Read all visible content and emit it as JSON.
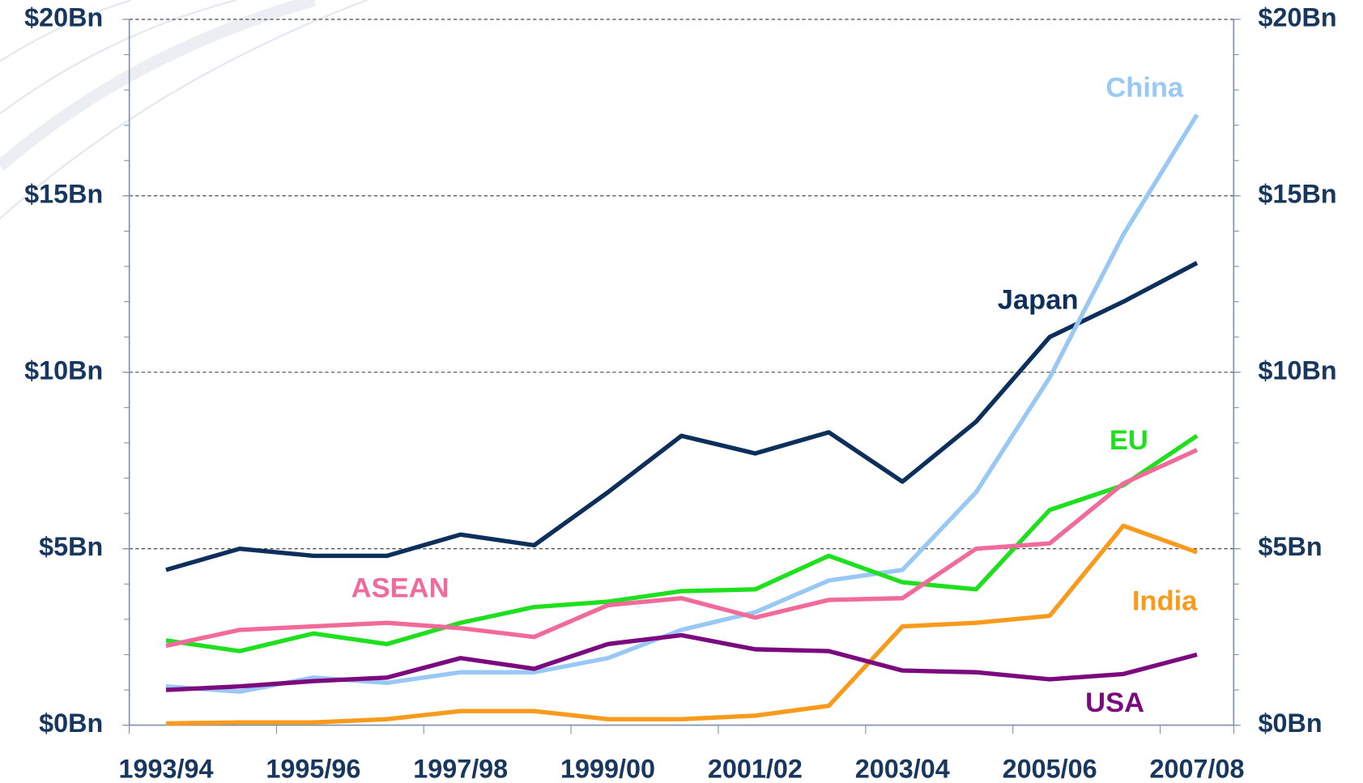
{
  "chart_data": {
    "type": "line",
    "categories": [
      "1993/94",
      null,
      "1995/96",
      null,
      "1997/98",
      null,
      "1999/00",
      null,
      "2001/02",
      null,
      "2003/04",
      null,
      "2005/06",
      null,
      "2007/08"
    ],
    "series": [
      {
        "name": "Japan",
        "color": "#0d2f5c",
        "values": [
          4.4,
          5.0,
          4.8,
          4.8,
          5.4,
          5.1,
          6.6,
          8.2,
          7.7,
          8.3,
          6.9,
          8.6,
          11.0,
          12.0,
          13.1
        ]
      },
      {
        "name": "China",
        "color": "#99c8f5",
        "values": [
          1.1,
          0.95,
          1.35,
          1.2,
          1.5,
          1.5,
          1.9,
          2.7,
          3.2,
          4.1,
          4.4,
          6.6,
          9.85,
          13.9,
          17.3
        ]
      },
      {
        "name": "EU",
        "color": "#1fe01f",
        "values": [
          2.4,
          2.1,
          2.6,
          2.3,
          2.9,
          3.35,
          3.5,
          3.8,
          3.85,
          4.8,
          4.05,
          3.85,
          6.1,
          6.8,
          8.2
        ]
      },
      {
        "name": "ASEAN",
        "color": "#f06b9a",
        "values": [
          2.25,
          2.7,
          2.8,
          2.9,
          2.75,
          2.5,
          3.4,
          3.6,
          3.05,
          3.55,
          3.6,
          5.0,
          5.15,
          6.85,
          7.8
        ]
      },
      {
        "name": "India",
        "color": "#f89b1c",
        "values": [
          0.05,
          0.08,
          0.08,
          0.17,
          0.4,
          0.4,
          0.17,
          0.17,
          0.27,
          0.55,
          2.8,
          2.9,
          3.1,
          5.65,
          4.9
        ]
      },
      {
        "name": "USA",
        "color": "#7b0a7e",
        "values": [
          1.0,
          1.1,
          1.25,
          1.35,
          1.9,
          1.6,
          2.3,
          2.55,
          2.15,
          2.1,
          1.55,
          1.5,
          1.3,
          1.45,
          2.0
        ]
      }
    ],
    "ylim": [
      0,
      20
    ],
    "yticks": [
      {
        "value": 0,
        "label": "$0Bn"
      },
      {
        "value": 5,
        "label": "$5Bn"
      },
      {
        "value": 10,
        "label": "$10Bn"
      },
      {
        "value": 15,
        "label": "$15Bn"
      },
      {
        "value": 20,
        "label": "$20Bn"
      }
    ],
    "y2lim": [
      0,
      20
    ],
    "y2ticks": [
      {
        "value": 0,
        "label": "$0Bn"
      },
      {
        "value": 5,
        "label": "$5Bn"
      },
      {
        "value": 10,
        "label": "$10Bn"
      },
      {
        "value": 15,
        "label": "$15Bn"
      },
      {
        "value": 20,
        "label": "$20Bn"
      }
    ],
    "grid": true
  }
}
